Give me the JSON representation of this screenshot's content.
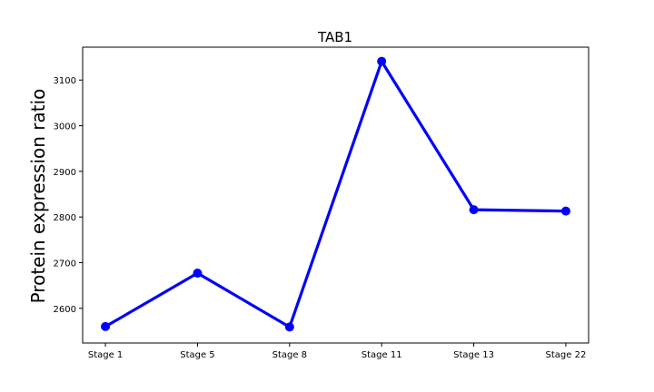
{
  "chart_data": {
    "type": "line",
    "title": "TAB1",
    "xlabel": "",
    "ylabel": "Protein expression ratio",
    "categories": [
      "Stage 1",
      "Stage 5",
      "Stage 8",
      "Stage 11",
      "Stage 13",
      "Stage 22"
    ],
    "series": [
      {
        "values": [
          2560,
          2677,
          2559,
          3141,
          2816,
          2813
        ],
        "color": "#0000ff"
      }
    ],
    "yticks": [
      2600,
      2700,
      2800,
      2900,
      3000,
      3100
    ],
    "ylim": [
      2524,
      3172
    ],
    "grid": false,
    "legend": "none"
  }
}
